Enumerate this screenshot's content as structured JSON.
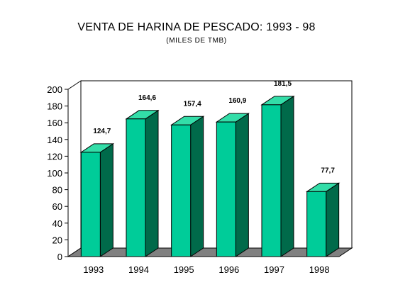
{
  "chart_data": {
    "type": "bar",
    "title": "VENTA DE HARINA DE PESCADO: 1993 - 98",
    "subtitle": "(MILES DE TMB)",
    "categories": [
      "1993",
      "1994",
      "1995",
      "1996",
      "1997",
      "1998"
    ],
    "values": [
      124.7,
      164.6,
      157.4,
      160.9,
      181.5,
      77.7
    ],
    "data_labels": [
      "124,7",
      "164,6",
      "157,4",
      "160,9",
      "181,5",
      "77,7"
    ],
    "ylim": [
      0,
      200
    ],
    "yticks": [
      0,
      20,
      40,
      60,
      80,
      100,
      120,
      140,
      160,
      180,
      200
    ],
    "grid": false,
    "style": "3d",
    "colors": {
      "bar_front": "#00cc99",
      "bar_top": "#33dda8",
      "bar_side": "#006a4a",
      "floor": "#808080"
    }
  }
}
